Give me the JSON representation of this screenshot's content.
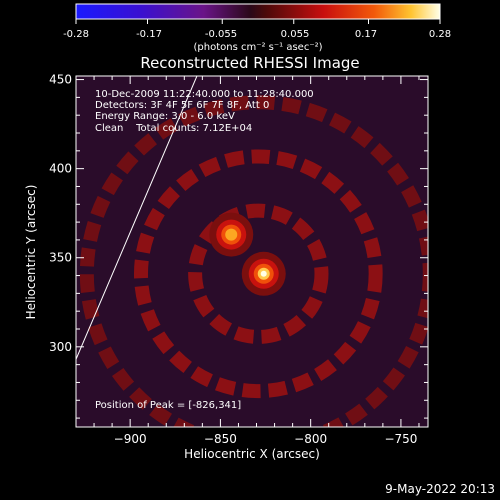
{
  "colorbar": {
    "tick_labels": [
      "-0.28",
      "-0.17",
      "-0.055",
      "0.055",
      "0.17",
      "0.28"
    ],
    "units_label": "(photons cm⁻² s⁻¹ asec⁻²)",
    "range": [
      -0.28,
      0.28
    ]
  },
  "footer": {
    "timestamp": "9-May-2022 20:13"
  },
  "chart_data": {
    "type": "heatmap",
    "title": "Reconstructed RHESSI Image",
    "xlabel": "Heliocentric X (arcsec)",
    "ylabel": "Heliocentric Y (arcsec)",
    "xlim": [
      -930,
      -735
    ],
    "ylim": [
      255,
      452
    ],
    "xticks": [
      -900,
      -850,
      -800,
      -750
    ],
    "yticks": [
      300,
      350,
      400,
      450
    ],
    "annotations": [
      "10-Dec-2009 11:22:40.000 to 11:28:40.000",
      "Detectors: 3F 4F 5F 6F 7F 8F, Att 0",
      "Energy Range: 3.0 - 6.0 keV",
      "Clean    Total counts: 7.12E+04"
    ],
    "peak_label": "Position of Peak = [-826,341]",
    "sources": [
      {
        "x": -826,
        "y": 341,
        "peak": 0.28
      },
      {
        "x": -844,
        "y": 363,
        "peak": 0.22
      }
    ],
    "rings": [
      {
        "x": -829,
        "y": 341,
        "radius": 35,
        "level": 0.1
      },
      {
        "x": -829,
        "y": 341,
        "radius": 65,
        "level": 0.1
      },
      {
        "x": -829,
        "y": 341,
        "radius": 95,
        "level": 0.07
      }
    ],
    "limb_line": {
      "x": [
        -930,
        -863
      ],
      "y": [
        293,
        452
      ]
    }
  }
}
